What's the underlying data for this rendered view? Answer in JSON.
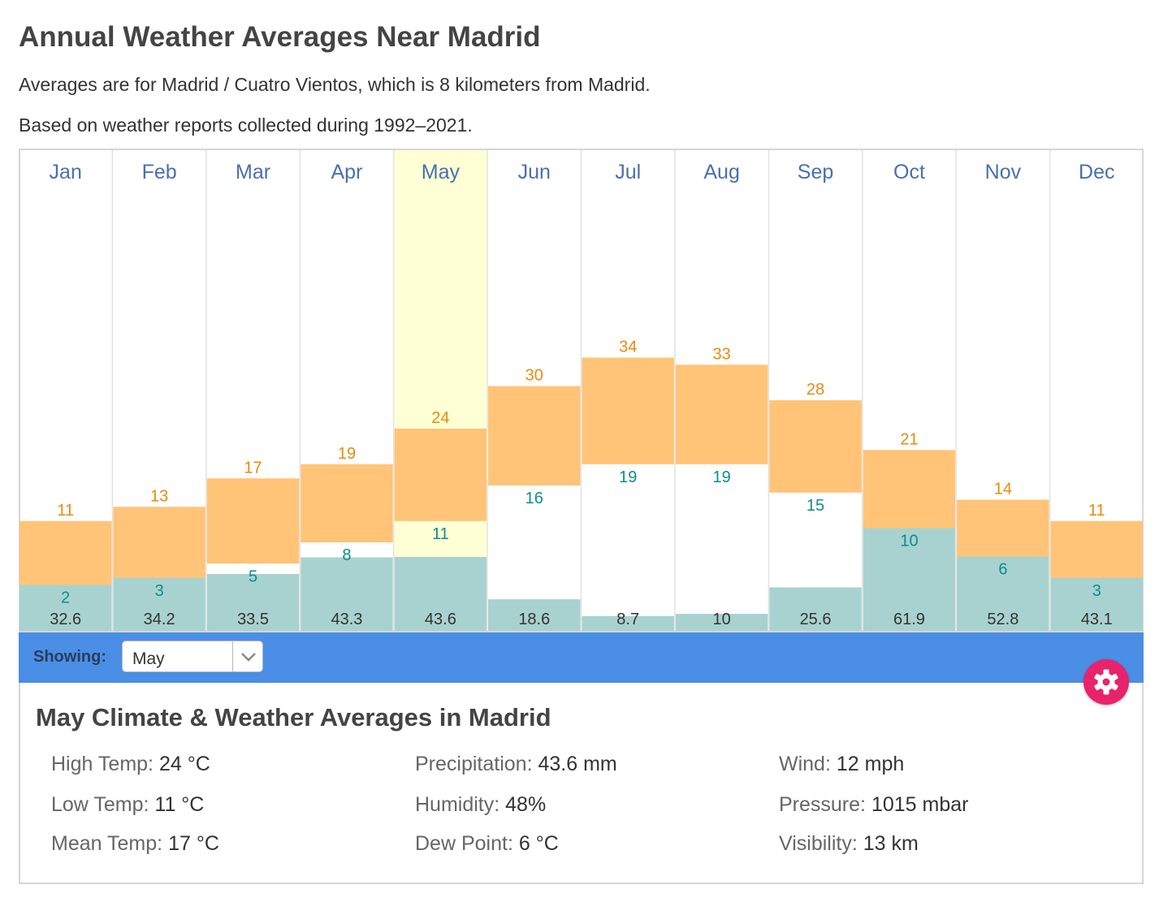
{
  "title": "Annual Weather Averages Near Madrid",
  "subtitle_1": "Averages are for Madrid / Cuatro Vientos, which is 8 kilometers from Madrid.",
  "subtitle_2": "Based on weather reports collected during 1992–2021.",
  "selected_month": "May",
  "colors": {
    "temp_band": "#ffc478",
    "high_label": "#e88a0c",
    "low_label": "#108c8c",
    "precip_bar": "#a8d2d0",
    "month_label": "#4a6fb0",
    "highlight": "#ffffd6",
    "showing_bar": "#4a8ee6",
    "gear_button": "#e8236b"
  },
  "chart_data": {
    "type": "bar",
    "categories": [
      "Jan",
      "Feb",
      "Mar",
      "Apr",
      "May",
      "Jun",
      "Jul",
      "Aug",
      "Sep",
      "Oct",
      "Nov",
      "Dec"
    ],
    "series": [
      {
        "values": [
          11,
          13,
          17,
          19,
          24,
          30,
          34,
          33,
          28,
          21,
          14,
          11
        ]
      },
      {
        "values": [
          2,
          3,
          5,
          8,
          11,
          16,
          19,
          19,
          15,
          10,
          6,
          3
        ]
      },
      {
        "values": [
          32.6,
          34.2,
          33.5,
          43.3,
          43.6,
          18.6,
          8.7,
          10,
          25.6,
          61.9,
          52.8,
          43.1
        ]
      }
    ],
    "temp_range": [
      -10,
      40
    ],
    "precip_range": [
      0,
      140
    ]
  },
  "showing": {
    "label": "Showing:",
    "selected": "May"
  },
  "details": {
    "title": "May Climate & Weather Averages in Madrid",
    "stats": [
      {
        "label": "High Temp:",
        "value": "24 °C"
      },
      {
        "label": "Low Temp:",
        "value": "11 °C"
      },
      {
        "label": "Mean Temp:",
        "value": "17 °C"
      },
      {
        "label": "Precipitation:",
        "value": "43.6 mm"
      },
      {
        "label": "Humidity:",
        "value": "48%"
      },
      {
        "label": "Dew Point:",
        "value": "6 °C"
      },
      {
        "label": "Wind:",
        "value": "12 mph"
      },
      {
        "label": "Pressure:",
        "value": "1015 mbar"
      },
      {
        "label": "Visibility:",
        "value": "13 km"
      }
    ]
  }
}
